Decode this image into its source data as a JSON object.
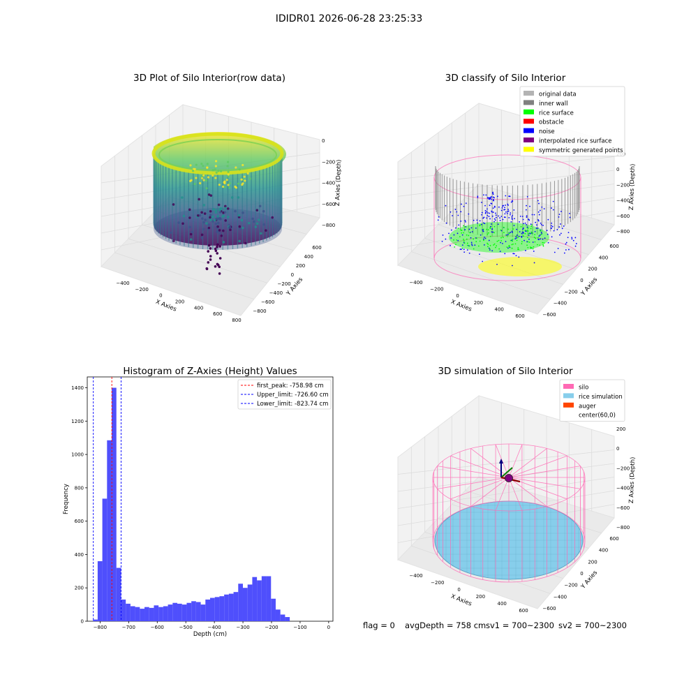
{
  "suptitle": "IDIDR01 2026-06-28 23:25:33",
  "footer": {
    "flag": "flag = 0",
    "avg_depth": "avgDepth = 758 cm",
    "sv1": "sv1 = 700~2300",
    "sv2": "sv2 = 700~2300"
  },
  "colors": {
    "original_data": "#b3b3b3",
    "inner_wall": "#808080",
    "rice_surface": "#00ff00",
    "obstacle": "#ff0000",
    "noise": "#0000ff",
    "interpolated_rice_surface": "#800080",
    "symmetric_generated_points": "#ffff00",
    "silo": "#ff69b4",
    "rice_simulation": "#87ceeb",
    "auger": "#ff4500",
    "histogram_bar": "#4f4ffc"
  },
  "chart_data": [
    {
      "type": "scatter",
      "title": "3D Plot of Silo Interior(row data)",
      "xlabel": "X Axies",
      "ylabel": "Y Axies",
      "zlabel": "Z Axies (Depth)",
      "x_ticks": [
        "−400",
        "−200",
        "0",
        "200",
        "400",
        "600",
        "800"
      ],
      "y_ticks": [
        "−800",
        "−600",
        "−400",
        "−200",
        "0",
        "200",
        "400",
        "600"
      ],
      "z_ticks": [
        "−800",
        "−600",
        "−400",
        "−200",
        "0"
      ],
      "colormap": "viridis"
    },
    {
      "type": "scatter",
      "title": "3D classify of Silo Interior",
      "xlabel": "X Axies",
      "ylabel": "Y Axies",
      "zlabel": "Z Axies (Depth)",
      "x_ticks": [
        "−400",
        "−200",
        "0",
        "200",
        "400",
        "600"
      ],
      "y_ticks": [
        "−600",
        "−400",
        "−200",
        "0",
        "200",
        "400",
        "600"
      ],
      "z_ticks": [
        "−800",
        "−600",
        "−400",
        "−200",
        "0",
        "200"
      ],
      "legend": [
        {
          "label": "original data",
          "color_key": "original_data"
        },
        {
          "label": "inner wall",
          "color_key": "inner_wall"
        },
        {
          "label": "rice surface",
          "color_key": "rice_surface"
        },
        {
          "label": "obstacle",
          "color_key": "obstacle"
        },
        {
          "label": "noise",
          "color_key": "noise"
        },
        {
          "label": "interpolated rice surface",
          "color_key": "interpolated_rice_surface"
        },
        {
          "label": "symmetric generated points",
          "color_key": "symmetric_generated_points"
        }
      ],
      "legend_position": "top-right"
    },
    {
      "type": "bar",
      "title": "Histogram of Z-Axies (Height) Values",
      "xlabel": "Depth (cm)",
      "ylabel": "Frequency",
      "xlim": [
        -845,
        15
      ],
      "ylim": [
        0,
        1465
      ],
      "x_ticks": [
        -800,
        -700,
        -600,
        -500,
        -400,
        -300,
        -200,
        -100,
        0
      ],
      "y_ticks": [
        0,
        200,
        400,
        600,
        800,
        1000,
        1200,
        1400
      ],
      "bins": {
        "start": -825,
        "width": 16.4,
        "counts": [
          10,
          360,
          735,
          1085,
          1400,
          320,
          130,
          105,
          90,
          85,
          75,
          85,
          80,
          95,
          85,
          90,
          100,
          110,
          105,
          100,
          110,
          120,
          115,
          100,
          130,
          140,
          145,
          150,
          160,
          165,
          175,
          225,
          200,
          220,
          265,
          245,
          270,
          270,
          135,
          70,
          40,
          25
        ]
      },
      "lines": [
        {
          "label": "first_peak: -758.98 cm",
          "x": -758.98,
          "color": "#ff0000"
        },
        {
          "label": "Upper_limit: -726.60 cm",
          "x": -726.6,
          "color": "#0000ff"
        },
        {
          "label": "Lower_limit: -823.74 cm",
          "x": -823.74,
          "color": "#0000ff"
        }
      ],
      "legend_position": "top-right"
    },
    {
      "type": "scatter",
      "title": "3D simulation of Silo Interior",
      "xlabel": "X Axies",
      "ylabel": "Y Axies",
      "zlabel": "Z Axies (Depth)",
      "x_ticks": [
        "−400",
        "−200",
        "0",
        "200",
        "400",
        "600"
      ],
      "y_ticks": [
        "−600",
        "−400",
        "−200",
        "0",
        "200",
        "400",
        "600"
      ],
      "z_ticks": [
        "−800",
        "−600",
        "−400",
        "−200",
        "0",
        "200"
      ],
      "legend": [
        {
          "label": "silo",
          "color_key": "silo"
        },
        {
          "label": "rice simulation",
          "color_key": "rice_simulation"
        },
        {
          "label": "auger",
          "color_key": "auger"
        },
        {
          "label": "center(60,0)",
          "color_key": ""
        }
      ],
      "legend_position": "top-right"
    }
  ]
}
